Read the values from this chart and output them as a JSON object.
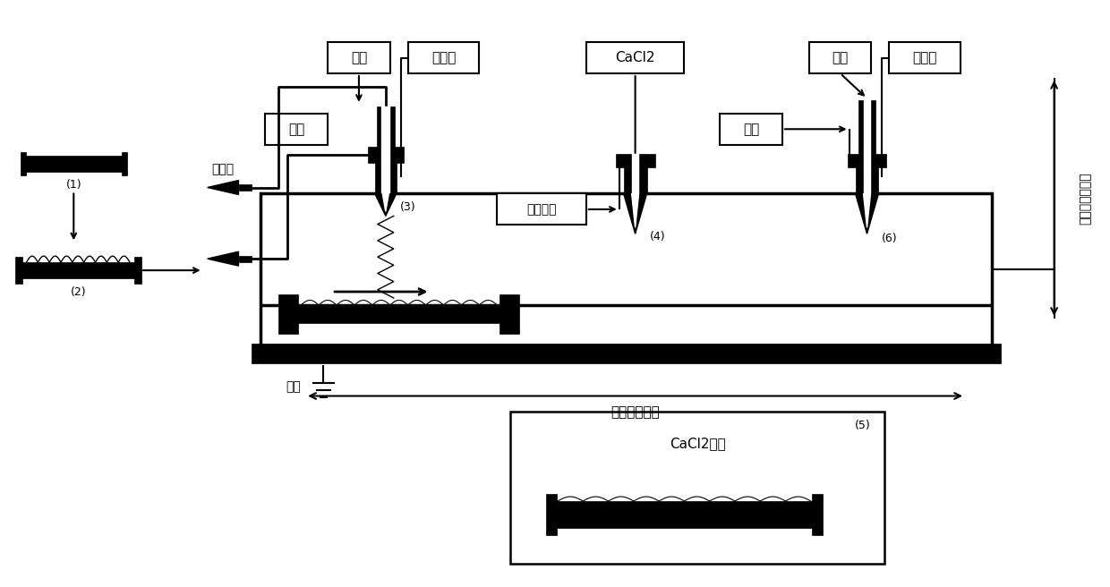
{
  "fig_width": 12.4,
  "fig_height": 6.56,
  "dpi": 100,
  "bg_color": "#ffffff",
  "black": "#000000",
  "labels": {
    "pump": "注射泵",
    "core1": "芯层",
    "outer1": "外层",
    "hv1": "高压电",
    "cacl2": "CaCl2",
    "sodium": "海藻酸钙",
    "core2": "芯层",
    "outer2": "外层",
    "hv2": "高压电",
    "ground": "接地",
    "platform": "平台水平运动",
    "nozzle_move": "喷头可上下运动",
    "cacl2_sol": "CaCl2溶液",
    "l1": "(1)",
    "l2": "(2)",
    "l3": "(3)",
    "l4": "(4)",
    "l5": "(5)",
    "l6": "(6)"
  }
}
